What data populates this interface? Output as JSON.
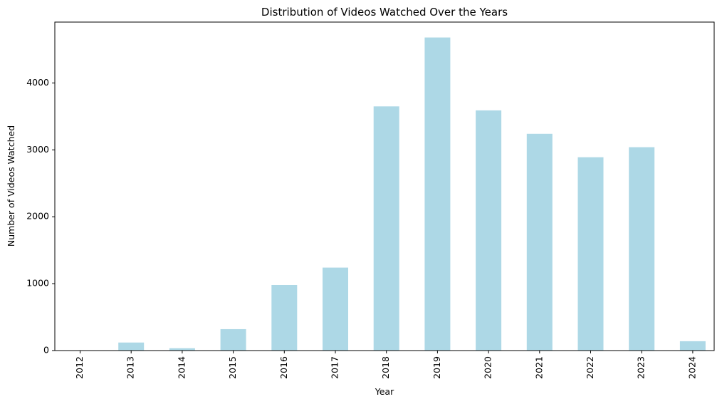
{
  "colors": {
    "bar": "#add8e6",
    "axis": "#000000",
    "background": "#ffffff"
  },
  "chart_data": {
    "type": "bar",
    "title": "Distribution of Videos Watched Over the Years",
    "xlabel": "Year",
    "ylabel": "Number of Videos Watched",
    "categories": [
      "2012",
      "2013",
      "2014",
      "2015",
      "2016",
      "2017",
      "2018",
      "2019",
      "2020",
      "2021",
      "2022",
      "2023",
      "2024"
    ],
    "values": [
      2,
      120,
      35,
      320,
      980,
      1240,
      3650,
      4680,
      3590,
      3240,
      2890,
      3040,
      140
    ],
    "ylim": [
      0,
      4910
    ],
    "yticks": [
      0,
      1000,
      2000,
      3000,
      4000
    ],
    "grid": false,
    "legend": "none"
  }
}
